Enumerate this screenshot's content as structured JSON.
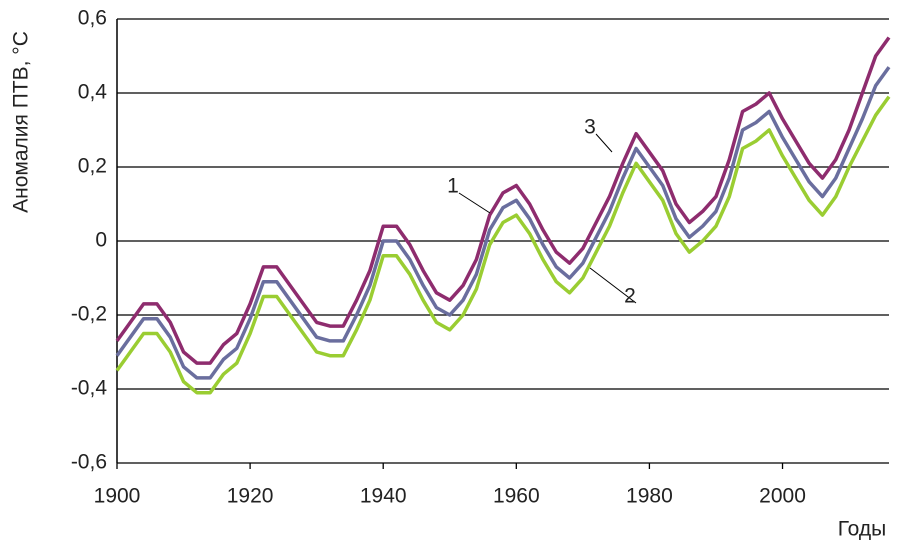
{
  "chart_data": {
    "type": "line",
    "ylabel": "Аномалия ПТВ, °С",
    "xlabel": "Годы",
    "x": [
      1900,
      1902,
      1904,
      1906,
      1908,
      1910,
      1912,
      1914,
      1916,
      1918,
      1920,
      1922,
      1924,
      1926,
      1928,
      1930,
      1932,
      1934,
      1936,
      1938,
      1940,
      1942,
      1944,
      1946,
      1948,
      1950,
      1952,
      1954,
      1956,
      1958,
      1960,
      1962,
      1964,
      1966,
      1968,
      1970,
      1972,
      1974,
      1976,
      1978,
      1980,
      1982,
      1984,
      1986,
      1988,
      1990,
      1992,
      1994,
      1996,
      1998,
      2000,
      2002,
      2004,
      2006,
      2008,
      2010,
      2012,
      2014,
      2016
    ],
    "series": [
      {
        "name": "1",
        "color": "#8e2c6e",
        "values": [
          -0.27,
          -0.22,
          -0.17,
          -0.17,
          -0.22,
          -0.3,
          -0.33,
          -0.33,
          -0.28,
          -0.25,
          -0.17,
          -0.07,
          -0.07,
          -0.12,
          -0.17,
          -0.22,
          -0.23,
          -0.23,
          -0.16,
          -0.08,
          0.04,
          0.04,
          -0.01,
          -0.08,
          -0.14,
          -0.16,
          -0.12,
          -0.05,
          0.07,
          0.13,
          0.15,
          0.1,
          0.03,
          -0.03,
          -0.06,
          -0.02,
          0.05,
          0.12,
          0.21,
          0.29,
          0.24,
          0.19,
          0.1,
          0.05,
          0.08,
          0.12,
          0.22,
          0.35,
          0.37,
          0.4,
          0.33,
          0.27,
          0.21,
          0.17,
          0.22,
          0.3,
          0.4,
          0.5,
          0.55
        ]
      },
      {
        "name": "3",
        "color": "#6a6e9e",
        "values": [
          -0.31,
          -0.26,
          -0.21,
          -0.21,
          -0.26,
          -0.34,
          -0.37,
          -0.37,
          -0.32,
          -0.29,
          -0.21,
          -0.11,
          -0.11,
          -0.16,
          -0.21,
          -0.26,
          -0.27,
          -0.27,
          -0.2,
          -0.12,
          0.0,
          0.0,
          -0.05,
          -0.12,
          -0.18,
          -0.2,
          -0.16,
          -0.09,
          0.03,
          0.09,
          0.11,
          0.06,
          -0.01,
          -0.07,
          -0.1,
          -0.06,
          0.01,
          0.08,
          0.17,
          0.25,
          0.2,
          0.15,
          0.06,
          0.01,
          0.04,
          0.08,
          0.17,
          0.3,
          0.32,
          0.35,
          0.28,
          0.22,
          0.16,
          0.12,
          0.17,
          0.25,
          0.33,
          0.42,
          0.47
        ]
      },
      {
        "name": "2",
        "color": "#9acd32",
        "values": [
          -0.35,
          -0.3,
          -0.25,
          -0.25,
          -0.3,
          -0.38,
          -0.41,
          -0.41,
          -0.36,
          -0.33,
          -0.25,
          -0.15,
          -0.15,
          -0.2,
          -0.25,
          -0.3,
          -0.31,
          -0.31,
          -0.24,
          -0.16,
          -0.04,
          -0.04,
          -0.09,
          -0.16,
          -0.22,
          -0.24,
          -0.2,
          -0.13,
          -0.01,
          0.05,
          0.07,
          0.02,
          -0.05,
          -0.11,
          -0.14,
          -0.1,
          -0.03,
          0.04,
          0.13,
          0.21,
          0.16,
          0.11,
          0.02,
          -0.03,
          0.0,
          0.04,
          0.12,
          0.25,
          0.27,
          0.3,
          0.23,
          0.17,
          0.11,
          0.07,
          0.12,
          0.2,
          0.27,
          0.34,
          0.39
        ]
      }
    ],
    "xlim": [
      1900,
      2016
    ],
    "xticks": [
      1900,
      1920,
      1940,
      1960,
      1980,
      2000
    ],
    "ylim": [
      -0.6,
      0.6
    ],
    "yticks": [
      {
        "value": -0.6,
        "label": "-0,6"
      },
      {
        "value": -0.4,
        "label": "-0,4"
      },
      {
        "value": -0.2,
        "label": "-0,2"
      },
      0,
      {
        "value": 0.2,
        "label": "0,2"
      },
      {
        "value": 0.4,
        "label": "0,4"
      },
      {
        "value": 0.6,
        "label": "0,6"
      }
    ],
    "grid": true
  }
}
